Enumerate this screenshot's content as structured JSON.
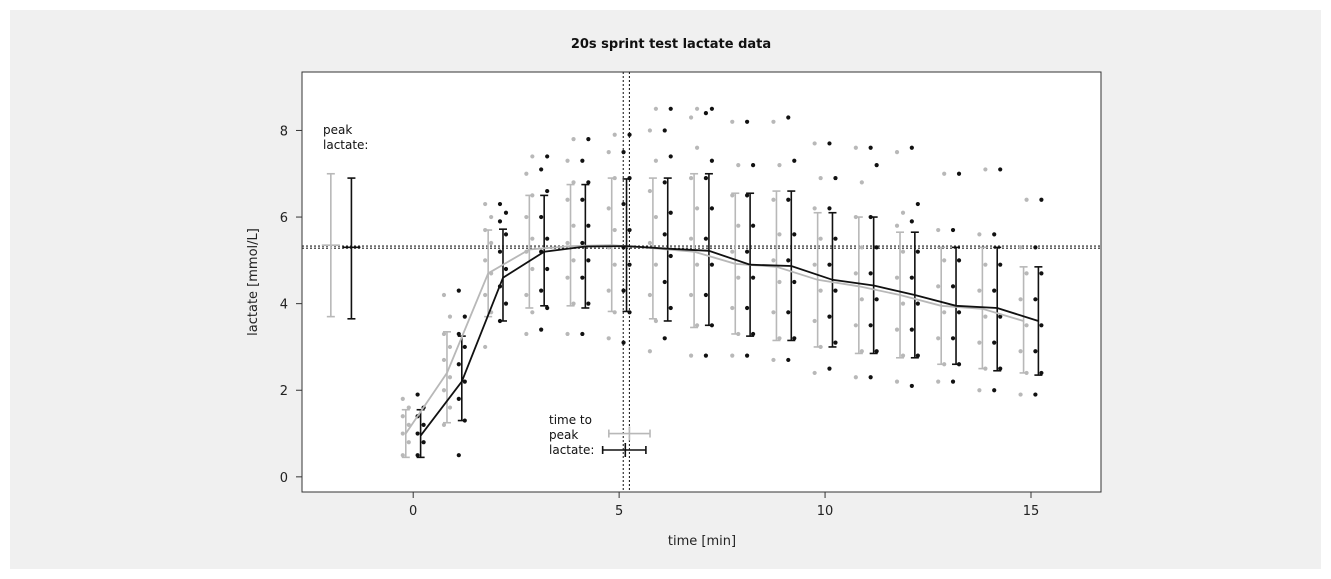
{
  "chart_data": {
    "type": "line",
    "title": "20s sprint test lactate data",
    "xlabel": "time [min]",
    "ylabel": "lactate [mmol/L]",
    "xlim": [
      -2.7,
      16.7
    ],
    "ylim": [
      -0.35,
      9.35
    ],
    "xticks": [
      0,
      5,
      10,
      15
    ],
    "yticks": [
      0,
      2,
      4,
      6,
      8
    ],
    "grid": false,
    "colors": {
      "grey": "#b8b8b8",
      "black": "#111111"
    },
    "series": [
      {
        "color": "grey",
        "x": [
          0,
          1,
          2,
          3,
          4,
          5,
          6,
          7,
          8,
          9,
          10,
          11,
          12,
          13,
          14,
          15
        ],
        "mean": [
          1.0,
          2.4,
          4.7,
          5.25,
          5.33,
          5.35,
          5.28,
          5.2,
          4.92,
          4.85,
          4.55,
          4.4,
          4.2,
          3.95,
          3.88,
          3.6
        ],
        "sd_low": [
          0.45,
          1.25,
          3.7,
          3.9,
          3.95,
          3.82,
          3.65,
          3.45,
          3.3,
          3.15,
          3.0,
          2.85,
          2.75,
          2.6,
          2.5,
          2.4
        ],
        "sd_high": [
          1.55,
          3.35,
          5.7,
          6.5,
          6.75,
          6.9,
          6.9,
          7.0,
          6.55,
          6.6,
          6.1,
          6.0,
          5.65,
          5.3,
          5.3,
          4.85
        ],
        "points": [
          [
            0.5,
            0.8,
            1.0,
            1.2,
            1.4,
            1.6,
            1.8
          ],
          [
            1.2,
            1.6,
            2.0,
            2.3,
            2.7,
            3.0,
            3.3,
            3.7,
            4.2
          ],
          [
            3.0,
            3.8,
            4.2,
            4.7,
            5.0,
            5.4,
            5.7,
            6.0,
            6.3
          ],
          [
            3.3,
            3.8,
            4.2,
            4.8,
            5.2,
            5.5,
            6.0,
            6.5,
            7.0,
            7.4
          ],
          [
            3.3,
            4.0,
            4.6,
            5.0,
            5.4,
            5.8,
            6.4,
            6.8,
            7.3,
            7.8
          ],
          [
            3.2,
            3.8,
            4.3,
            4.9,
            5.3,
            5.7,
            6.2,
            6.9,
            7.5,
            7.9
          ],
          [
            2.9,
            3.6,
            4.2,
            4.9,
            5.4,
            6.0,
            6.6,
            7.3,
            8.0,
            8.5
          ],
          [
            2.8,
            3.5,
            4.2,
            4.9,
            5.5,
            6.2,
            6.9,
            7.6,
            8.3,
            8.5
          ],
          [
            2.8,
            3.3,
            3.9,
            4.6,
            5.2,
            5.8,
            6.5,
            7.2,
            8.2
          ],
          [
            2.7,
            3.2,
            3.8,
            4.5,
            5.0,
            5.6,
            6.4,
            7.2,
            8.2
          ],
          [
            2.4,
            3.0,
            3.6,
            4.3,
            4.9,
            5.5,
            6.2,
            6.9,
            7.7
          ],
          [
            2.3,
            2.9,
            3.5,
            4.1,
            4.7,
            5.3,
            6.0,
            6.8,
            7.6
          ],
          [
            2.2,
            2.8,
            3.4,
            4.0,
            4.6,
            5.2,
            5.8,
            6.1,
            7.5
          ],
          [
            2.2,
            2.6,
            3.2,
            3.8,
            4.4,
            5.0,
            5.7,
            7.0
          ],
          [
            2.0,
            2.5,
            3.1,
            3.7,
            4.3,
            4.9,
            5.6,
            7.1
          ],
          [
            1.9,
            2.4,
            2.9,
            3.5,
            4.1,
            4.7,
            5.3,
            6.4
          ]
        ]
      },
      {
        "color": "black",
        "x": [
          0,
          1,
          2,
          3,
          4,
          5,
          6,
          7,
          8,
          9,
          10,
          11,
          12,
          13,
          14,
          15
        ],
        "mean": [
          0.95,
          2.2,
          4.6,
          5.2,
          5.32,
          5.33,
          5.27,
          5.22,
          4.9,
          4.87,
          4.55,
          4.42,
          4.2,
          3.95,
          3.9,
          3.6
        ],
        "sd_low": [
          0.45,
          1.3,
          3.6,
          3.95,
          3.9,
          3.82,
          3.6,
          3.5,
          3.25,
          3.15,
          3.0,
          2.85,
          2.75,
          2.6,
          2.45,
          2.35
        ],
        "sd_high": [
          1.55,
          3.25,
          5.72,
          6.5,
          6.75,
          6.88,
          6.9,
          7.0,
          6.55,
          6.6,
          6.1,
          6.0,
          5.65,
          5.3,
          5.3,
          4.85
        ],
        "points": [
          [
            0.5,
            0.8,
            1.0,
            1.2,
            1.4,
            1.6,
            1.9
          ],
          [
            0.5,
            1.3,
            1.8,
            2.2,
            2.6,
            3.0,
            3.3,
            3.7,
            4.3
          ],
          [
            3.6,
            4.0,
            4.4,
            4.8,
            5.2,
            5.6,
            5.9,
            6.1,
            6.3
          ],
          [
            3.4,
            3.9,
            4.3,
            4.8,
            5.2,
            5.5,
            6.0,
            6.6,
            7.1,
            7.4
          ],
          [
            3.3,
            4.0,
            4.6,
            5.0,
            5.4,
            5.8,
            6.4,
            6.8,
            7.3,
            7.8
          ],
          [
            3.1,
            3.8,
            4.3,
            4.9,
            5.3,
            5.7,
            6.3,
            6.9,
            7.5,
            7.9
          ],
          [
            3.2,
            3.9,
            4.5,
            5.1,
            5.6,
            6.1,
            6.8,
            7.4,
            8.0,
            8.5
          ],
          [
            2.8,
            3.5,
            4.2,
            4.9,
            5.5,
            6.2,
            6.9,
            7.3,
            8.4,
            8.5
          ],
          [
            2.8,
            3.3,
            3.9,
            4.6,
            5.2,
            5.8,
            6.5,
            7.2,
            8.2
          ],
          [
            2.7,
            3.2,
            3.8,
            4.5,
            5.0,
            5.6,
            6.4,
            7.3,
            8.3
          ],
          [
            2.5,
            3.1,
            3.7,
            4.3,
            4.9,
            5.5,
            6.2,
            6.9,
            7.7
          ],
          [
            2.3,
            2.9,
            3.5,
            4.1,
            4.7,
            5.3,
            6.0,
            7.2,
            7.6
          ],
          [
            2.1,
            2.8,
            3.4,
            4.0,
            4.6,
            5.2,
            5.9,
            6.3,
            7.6
          ],
          [
            2.2,
            2.6,
            3.2,
            3.8,
            4.4,
            5.0,
            5.7,
            7.0
          ],
          [
            2.0,
            2.5,
            3.1,
            3.7,
            4.3,
            4.9,
            5.6,
            7.1
          ],
          [
            1.9,
            2.4,
            2.9,
            3.5,
            4.1,
            4.7,
            5.3,
            6.4
          ]
        ]
      }
    ],
    "peak_lactate": {
      "label": "peak lactate:",
      "grey": {
        "x": -2.0,
        "mean": 5.35,
        "low": 3.7,
        "high": 7.0
      },
      "black": {
        "x": -1.5,
        "mean": 5.3,
        "low": 3.65,
        "high": 6.9
      }
    },
    "time_to_peak": {
      "label": "time to peak lactate:",
      "grey": {
        "y": 1.0,
        "mean": 5.25,
        "low": 4.75,
        "high": 5.75
      },
      "black": {
        "y": 0.62,
        "mean": 5.15,
        "low": 4.6,
        "high": 5.65
      }
    },
    "reference_lines": {
      "horizontal": [
        5.33,
        5.28
      ],
      "vertical": [
        5.1,
        5.25
      ]
    }
  }
}
